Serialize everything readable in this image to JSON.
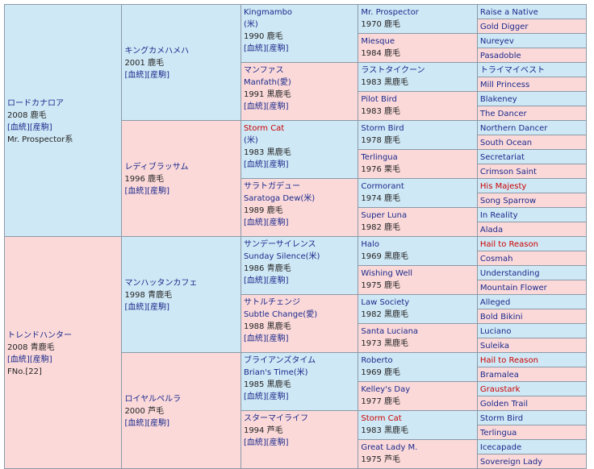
{
  "colors": {
    "male_bg": "#cfe8f5",
    "female_bg": "#fbd9d9",
    "link": "#1a2a8c",
    "highlight": "#cc0000"
  },
  "link_labels": {
    "blood": "[血統]",
    "produce": "[産駒]"
  },
  "sire": {
    "name": "ロードカナロア",
    "info": "2008 鹿毛",
    "extra": "Mr. Prospector系"
  },
  "dam": {
    "name": "トレンドハンター",
    "info": "2008 青鹿毛",
    "extra": "FNo.[22]"
  },
  "ss": {
    "name": "キングカメハメハ",
    "info": "2001 鹿毛"
  },
  "sd": {
    "name": "レディブラッサム",
    "info": "1996 鹿毛"
  },
  "ds": {
    "name": "マンハッタンカフェ",
    "info": "1998 青鹿毛"
  },
  "dd": {
    "name": "ロイヤルペルラ",
    "info": "2000 芦毛"
  },
  "g3": [
    {
      "name": "Kingmambo",
      "country": "(米)",
      "info": "1990 鹿毛"
    },
    {
      "name": "マンファス",
      "country": "Manfath(愛)",
      "info": "1991 黒鹿毛"
    },
    {
      "name": "Storm Cat",
      "country": "(米)",
      "info": "1983 黒鹿毛"
    },
    {
      "name": "サラトガデュー",
      "country": "Saratoga Dew(米)",
      "info": "1989 鹿毛"
    },
    {
      "name": "サンデーサイレンス",
      "country": "Sunday Silence(米)",
      "info": "1986 青鹿毛"
    },
    {
      "name": "サトルチェンジ",
      "country": "Subtle Change(愛)",
      "info": "1988 黒鹿毛"
    },
    {
      "name": "ブライアンズタイム",
      "country": "Brian's Time(米)",
      "info": "1985 黒鹿毛"
    },
    {
      "name": "スターマイライフ",
      "country": "",
      "info": "1994 芦毛"
    }
  ],
  "g4": [
    {
      "name": "Mr. Prospector",
      "info": "1970 鹿毛"
    },
    {
      "name": "Miesque",
      "info": "1984 鹿毛"
    },
    {
      "name": "ラストタイクーン",
      "info": "1983 黒鹿毛"
    },
    {
      "name": "Pilot Bird",
      "info": "1983 鹿毛"
    },
    {
      "name": "Storm Bird",
      "info": "1978 鹿毛"
    },
    {
      "name": "Terlingua",
      "info": "1976 栗毛"
    },
    {
      "name": "Cormorant",
      "info": "1974 鹿毛"
    },
    {
      "name": "Super Luna",
      "info": "1982 鹿毛"
    },
    {
      "name": "Halo",
      "info": "1969 黒鹿毛"
    },
    {
      "name": "Wishing Well",
      "info": "1975 鹿毛"
    },
    {
      "name": "Law Society",
      "info": "1982 黒鹿毛"
    },
    {
      "name": "Santa Luciana",
      "info": "1973 黒鹿毛"
    },
    {
      "name": "Roberto",
      "info": "1969 鹿毛"
    },
    {
      "name": "Kelley's Day",
      "info": "1977 鹿毛"
    },
    {
      "name": "Storm Cat",
      "info": "1983 黒鹿毛"
    },
    {
      "name": "Great Lady M.",
      "info": "1975 芦毛"
    }
  ],
  "g5": [
    "Raise a Native",
    "Gold Digger",
    "Nureyev",
    "Pasadoble",
    "トライマイベスト",
    "Mill Princess",
    "Blakeney",
    "The Dancer",
    "Northern Dancer",
    "South Ocean",
    "Secretariat",
    "Crimson Saint",
    "His Majesty",
    "Song Sparrow",
    "In Reality",
    "Alada",
    "Hail to Reason",
    "Cosmah",
    "Understanding",
    "Mountain Flower",
    "Alleged",
    "Bold Bikini",
    "Luciano",
    "Suleika",
    "Hail to Reason",
    "Bramalea",
    "Graustark",
    "Golden Trail",
    "Storm Bird",
    "Terlingua",
    "Icecapade",
    "Sovereign Lady"
  ]
}
